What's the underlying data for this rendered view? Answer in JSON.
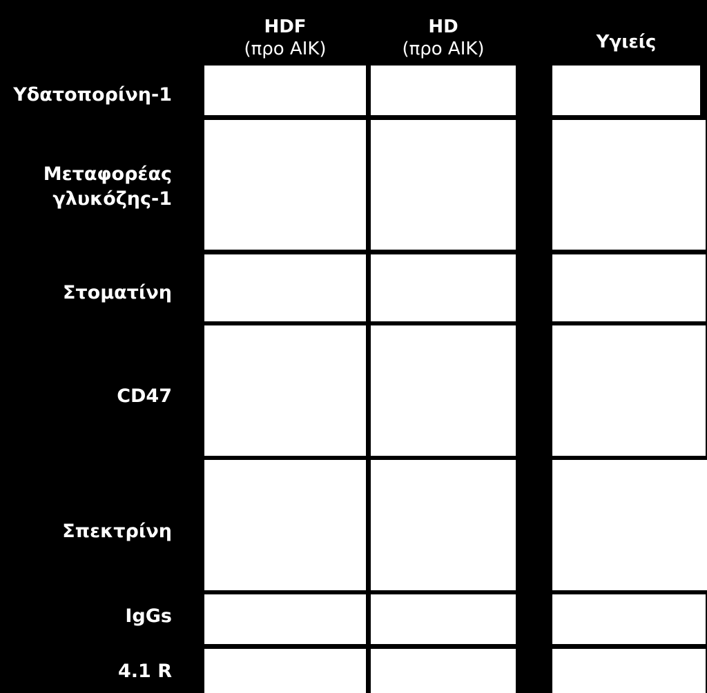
{
  "columns": [
    {
      "title": "HDF",
      "subtitle": "(προ ΑΙΚ)"
    },
    {
      "title": "HD",
      "subtitle": "(προ ΑΙΚ)"
    },
    {
      "title": "Υγιείς",
      "subtitle": ""
    }
  ],
  "rows": [
    {
      "label_lines": [
        "Υδατοπορίνη-1"
      ]
    },
    {
      "label_lines": [
        "Μεταφορέας",
        "γλυκόζης-1"
      ]
    },
    {
      "label_lines": [
        "Στοματίνη"
      ]
    },
    {
      "label_lines": [
        "CD47"
      ]
    },
    {
      "label_lines": [
        "Σπεκτρίνη"
      ]
    },
    {
      "label_lines": [
        "IgGs"
      ]
    },
    {
      "label_lines": [
        "4.1 R"
      ]
    }
  ],
  "colors": {
    "background": "#000000",
    "cell": "#ffffff",
    "text": "#ffffff"
  }
}
